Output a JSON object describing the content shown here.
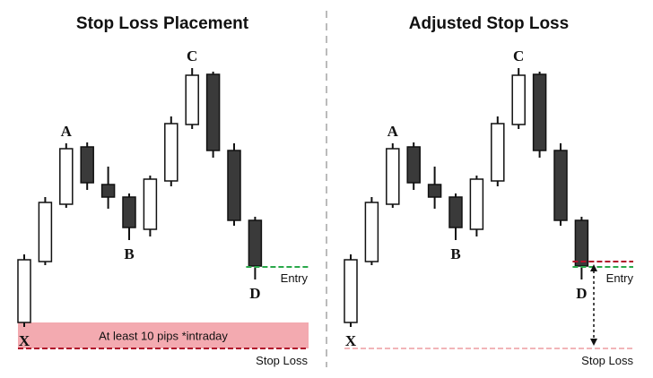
{
  "colors": {
    "bull_fill": "#ffffff",
    "bear_fill": "#3a3a3a",
    "candle_stroke": "#111111",
    "entry_line": "#2aa84a",
    "stop_line": "#b0102a",
    "stop_line_faded": "#f2b5b8",
    "zone_fill": "#f3aab0",
    "divider": "#bbbbbb"
  },
  "chart_data": [
    {
      "type": "candlestick",
      "title": "Stop Loss Placement",
      "candles": [
        {
          "open": 62,
          "close": 132,
          "high": 138,
          "low": 57
        },
        {
          "open": 130,
          "close": 196,
          "high": 202,
          "low": 126
        },
        {
          "open": 194,
          "close": 256,
          "high": 262,
          "low": 190
        },
        {
          "open": 258,
          "close": 218,
          "high": 263,
          "low": 210
        },
        {
          "open": 216,
          "close": 202,
          "high": 236,
          "low": 189
        },
        {
          "open": 202,
          "close": 168,
          "high": 206,
          "low": 154
        },
        {
          "open": 166,
          "close": 222,
          "high": 226,
          "low": 158
        },
        {
          "open": 220,
          "close": 284,
          "high": 292,
          "low": 214
        },
        {
          "open": 283,
          "close": 338,
          "high": 346,
          "low": 278
        },
        {
          "open": 339,
          "close": 254,
          "high": 342,
          "low": 246
        },
        {
          "open": 254,
          "close": 176,
          "high": 262,
          "low": 170
        },
        {
          "open": 176,
          "close": 125,
          "high": 180,
          "low": 110
        }
      ],
      "points": [
        {
          "label": "X",
          "candle": 0,
          "at": "low"
        },
        {
          "label": "A",
          "candle": 2,
          "at": "high"
        },
        {
          "label": "B",
          "candle": 5,
          "at": "low"
        },
        {
          "label": "C",
          "candle": 8,
          "at": "high"
        },
        {
          "label": "D",
          "candle": 11,
          "at": "low"
        }
      ],
      "entry": {
        "label": "Entry",
        "value": 124
      },
      "stop_loss": {
        "label": "Stop Loss",
        "value": 33,
        "style": "solid"
      },
      "zone": {
        "label": "At least 10 pips *intraday",
        "from": 33,
        "to": 62
      },
      "ylim": [
        0,
        422
      ]
    },
    {
      "type": "candlestick",
      "title": "Adjusted Stop Loss",
      "candles": [
        {
          "open": 62,
          "close": 132,
          "high": 138,
          "low": 57
        },
        {
          "open": 130,
          "close": 196,
          "high": 202,
          "low": 126
        },
        {
          "open": 194,
          "close": 256,
          "high": 262,
          "low": 190
        },
        {
          "open": 258,
          "close": 218,
          "high": 263,
          "low": 210
        },
        {
          "open": 216,
          "close": 202,
          "high": 236,
          "low": 189
        },
        {
          "open": 202,
          "close": 168,
          "high": 206,
          "low": 154
        },
        {
          "open": 166,
          "close": 222,
          "high": 226,
          "low": 158
        },
        {
          "open": 220,
          "close": 284,
          "high": 292,
          "low": 214
        },
        {
          "open": 283,
          "close": 338,
          "high": 346,
          "low": 278
        },
        {
          "open": 339,
          "close": 254,
          "high": 342,
          "low": 246
        },
        {
          "open": 254,
          "close": 176,
          "high": 262,
          "low": 170
        },
        {
          "open": 176,
          "close": 125,
          "high": 180,
          "low": 110
        }
      ],
      "points": [
        {
          "label": "X",
          "candle": 0,
          "at": "low"
        },
        {
          "label": "A",
          "candle": 2,
          "at": "high"
        },
        {
          "label": "B",
          "candle": 5,
          "at": "low"
        },
        {
          "label": "C",
          "candle": 8,
          "at": "high"
        },
        {
          "label": "D",
          "candle": 11,
          "at": "low"
        }
      ],
      "entry": {
        "label": "Entry",
        "value": 124
      },
      "adjusted_stop": {
        "value": 130
      },
      "stop_loss": {
        "label": "Stop Loss",
        "value": 33,
        "style": "faded"
      },
      "ylim": [
        0,
        422
      ]
    }
  ]
}
